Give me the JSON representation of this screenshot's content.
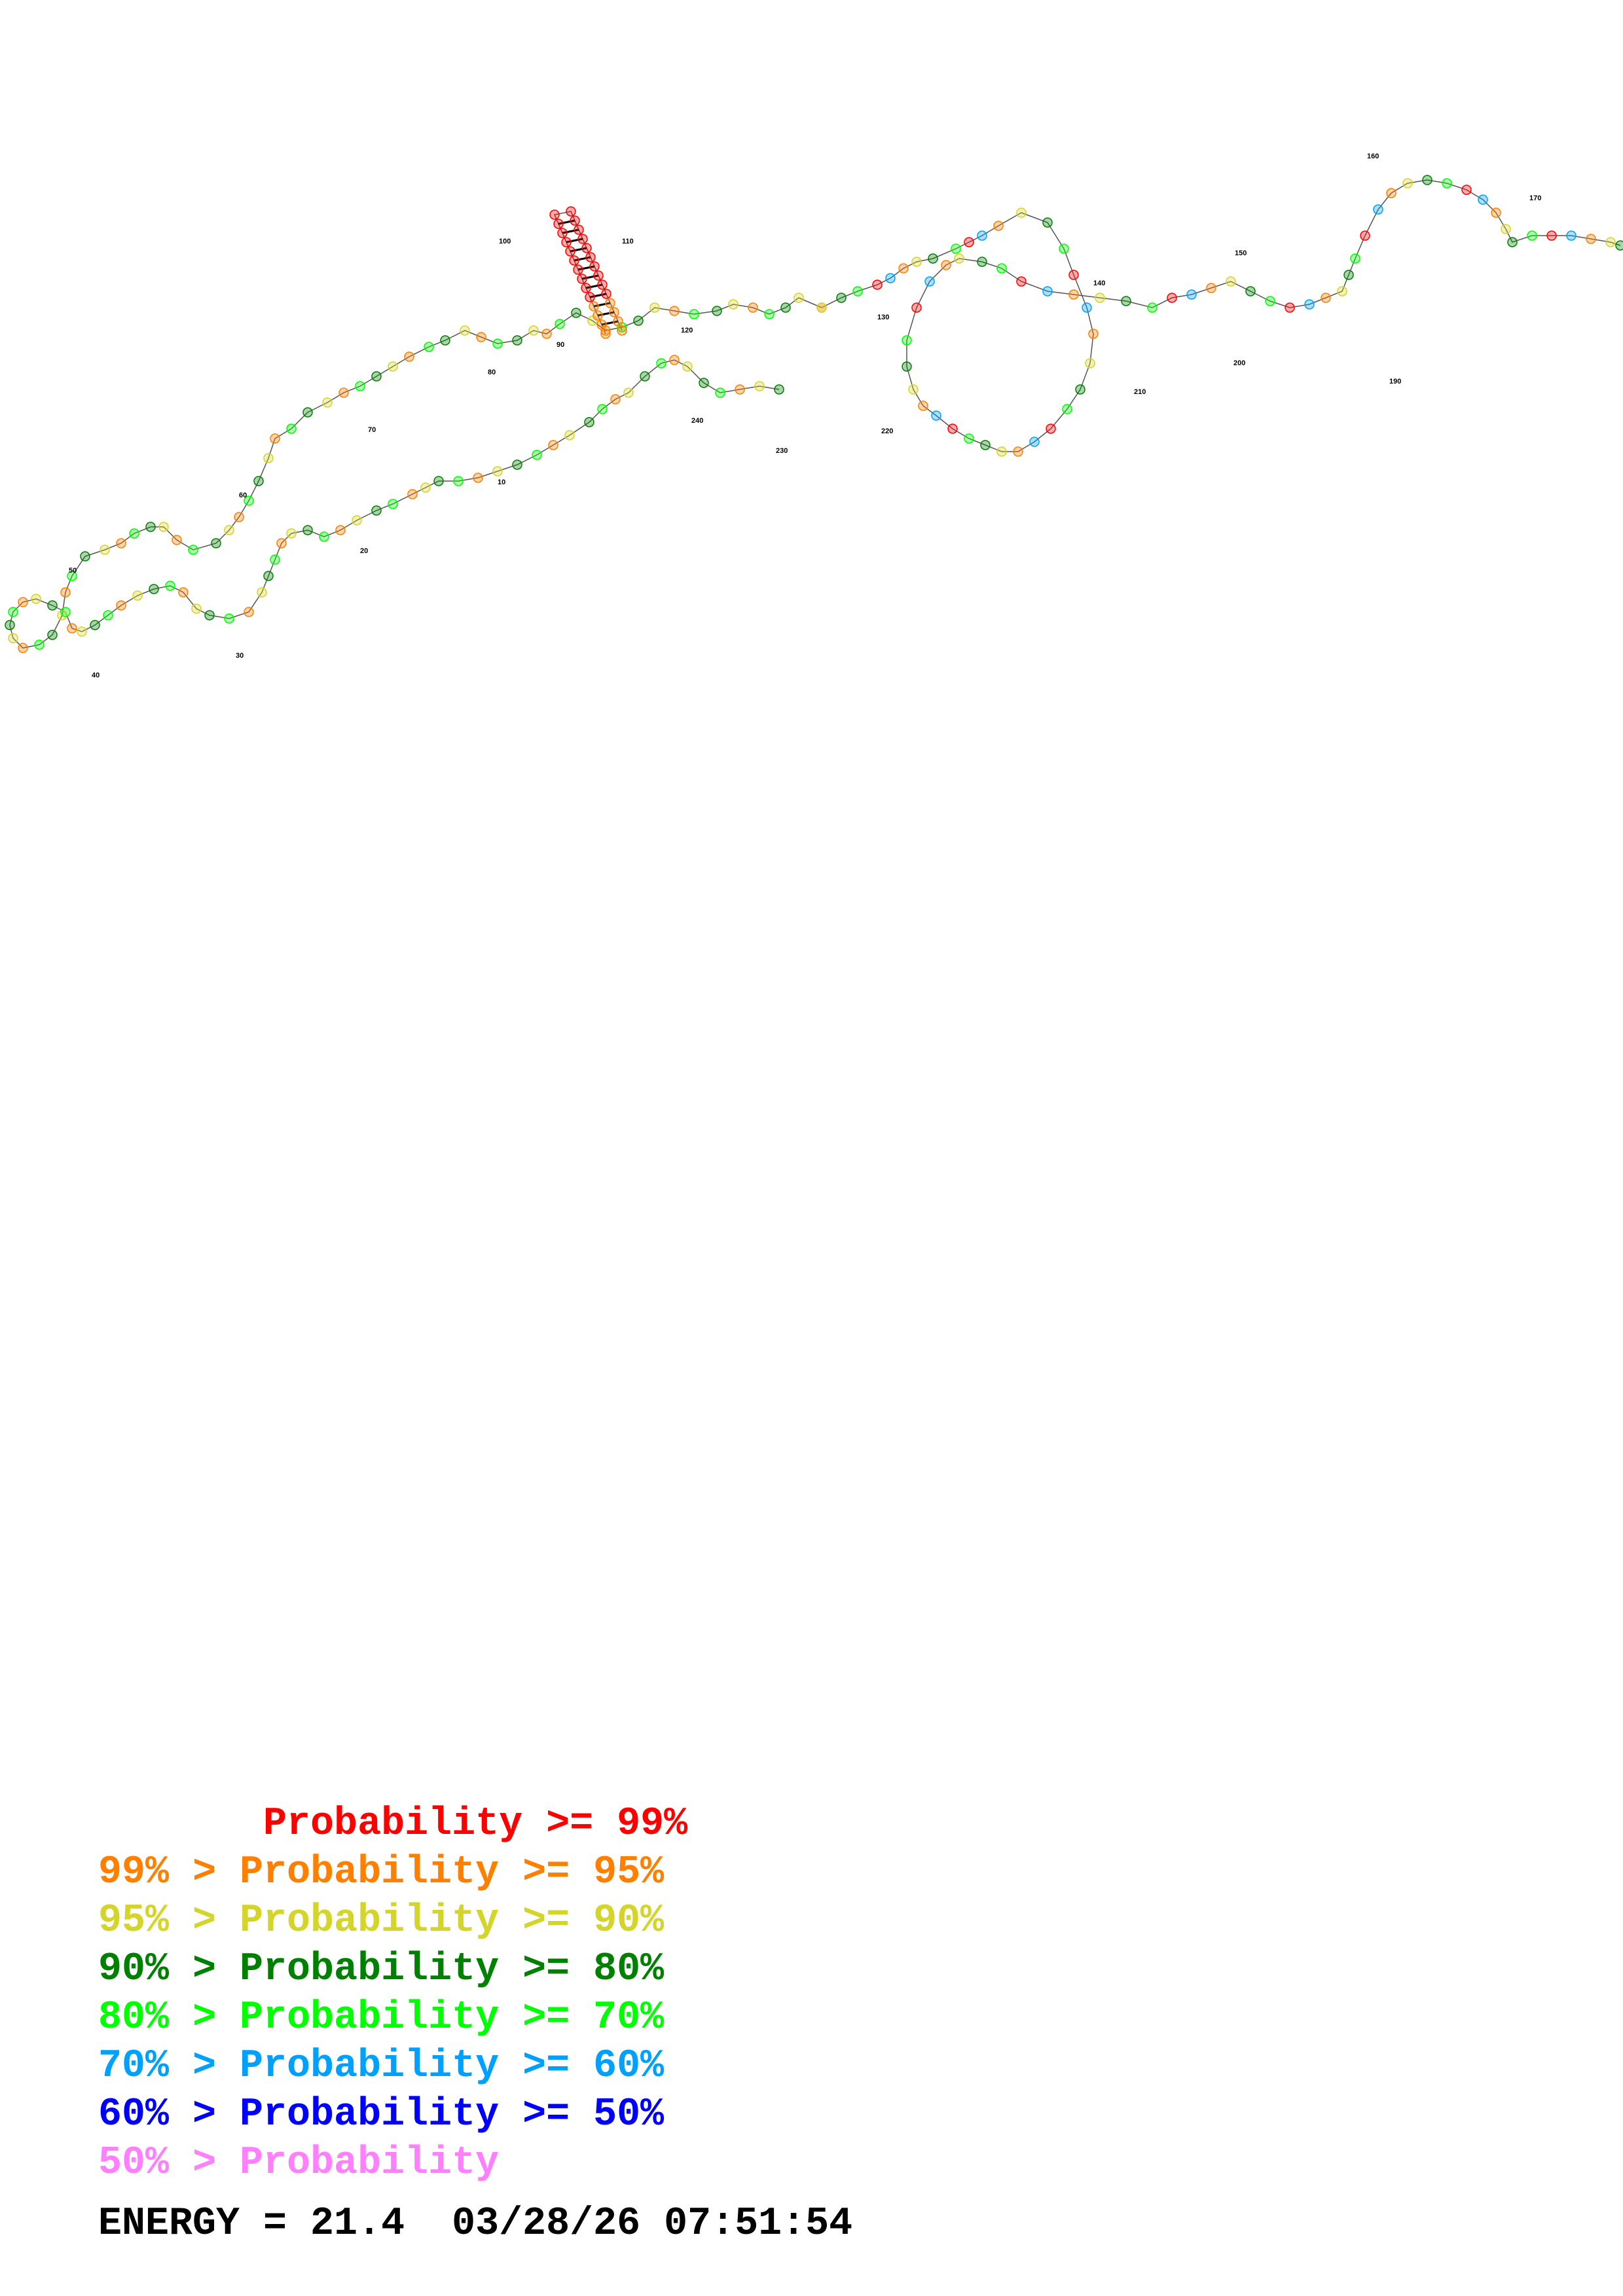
{
  "legend": {
    "rows": [
      {
        "text": "       Probability >= 99%",
        "color": "#ff0000"
      },
      {
        "text": "99% > Probability >= 95%",
        "color": "#ff7f00"
      },
      {
        "text": "95% > Probability >= 90%",
        "color": "#d4d42a"
      },
      {
        "text": "90% > Probability >= 80%",
        "color": "#008000"
      },
      {
        "text": "80% > Probability >= 70%",
        "color": "#00ff00"
      },
      {
        "text": "70% > Probability >= 60%",
        "color": "#00a0ff"
      },
      {
        "text": "60% > Probability >= 50%",
        "color": "#0000ff"
      },
      {
        "text": "50% > Probability",
        "color": "#ff80ff"
      }
    ]
  },
  "footer": {
    "energy": "ENERGY = 21.4  03/28/26 07:51:54"
  },
  "structure": {
    "position_labels": [
      "10",
      "20",
      "30",
      "40",
      "50",
      "60",
      "70",
      "80",
      "90",
      "100",
      "110",
      "120",
      "130",
      "140",
      "150",
      "160",
      "170",
      "190",
      "200",
      "210",
      "220",
      "230",
      "240"
    ],
    "colors": {
      "p99": "#ff0000",
      "p95": "#ff7f00",
      "p90": "#d4d42a",
      "p80": "#008000",
      "p70": "#00ff00",
      "p60": "#00a0ff",
      "p50": "#0000ff",
      "plow": "#ff80ff"
    }
  }
}
